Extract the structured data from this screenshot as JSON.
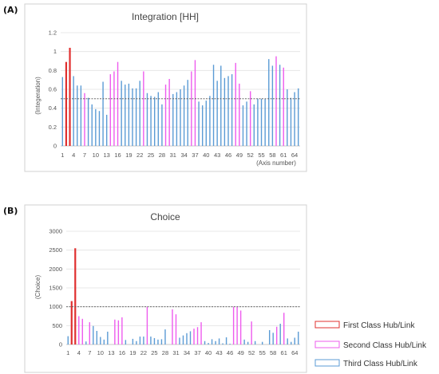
{
  "series_colors": {
    "First Class Hub/Link": "#e0302f",
    "Second Class Hub/Link": "#ee5cee",
    "Third Class Hub/Link": "#5b9bd5"
  },
  "legend": {
    "placement": "bottom-right",
    "items": [
      {
        "label": "First Class Hub/Link"
      },
      {
        "label": "Second Class Hub/Link"
      },
      {
        "label": "Third Class Hub/Link"
      }
    ]
  },
  "chart_data": [
    {
      "type": "bar",
      "panel_label": "(A)",
      "title": "Integration [HH]",
      "ylabel": "(Integeration)",
      "xlabel": "(Axis number)",
      "ylim": [
        0,
        1.2
      ],
      "yticks": [
        0,
        0.2,
        0.4,
        0.6,
        0.8,
        1,
        1.2
      ],
      "ytick_labels": [
        "0",
        "0.2",
        "0.4",
        "0.6",
        "0.8",
        "1",
        "1.2"
      ],
      "xtick_labels": [
        "1",
        "4",
        "7",
        "10",
        "13",
        "16",
        "19",
        "22",
        "25",
        "28",
        "31",
        "34",
        "37",
        "40",
        "43",
        "46",
        "49",
        "52",
        "55",
        "58",
        "61",
        "64"
      ],
      "reference_line": 0.5,
      "grid": true,
      "x": [
        1,
        2,
        3,
        4,
        5,
        6,
        7,
        8,
        9,
        10,
        11,
        12,
        13,
        14,
        15,
        16,
        17,
        18,
        19,
        20,
        21,
        22,
        23,
        24,
        25,
        26,
        27,
        28,
        29,
        30,
        31,
        32,
        33,
        34,
        35,
        36,
        37,
        38,
        39,
        40,
        41,
        42,
        43,
        44,
        45,
        46,
        47,
        48,
        49,
        50,
        51,
        52,
        53,
        54,
        55,
        56,
        57,
        58,
        59,
        60,
        61,
        62,
        63,
        64,
        65
      ],
      "values": [
        0.73,
        0.89,
        1.04,
        0.74,
        0.64,
        0.64,
        0.56,
        0.51,
        0.44,
        0.39,
        0.37,
        0.68,
        0.33,
        0.76,
        0.79,
        0.89,
        0.69,
        0.65,
        0.66,
        0.61,
        0.61,
        0.69,
        0.79,
        0.56,
        0.53,
        0.52,
        0.57,
        0.44,
        0.65,
        0.71,
        0.55,
        0.57,
        0.6,
        0.64,
        0.7,
        0.79,
        0.91,
        0.47,
        0.43,
        0.48,
        0.53,
        0.86,
        0.69,
        0.85,
        0.72,
        0.74,
        0.76,
        0.88,
        0.66,
        0.43,
        0.47,
        0.58,
        0.44,
        0.5,
        0.5,
        0.5,
        0.92,
        0.85,
        0.95,
        0.86,
        0.83,
        0.6,
        0.51,
        0.57,
        0.61
      ],
      "classes": [
        3,
        1,
        1,
        3,
        3,
        3,
        2,
        3,
        3,
        3,
        3,
        3,
        3,
        2,
        2,
        2,
        3,
        3,
        3,
        3,
        3,
        3,
        2,
        3,
        3,
        3,
        3,
        3,
        2,
        2,
        3,
        3,
        3,
        3,
        3,
        2,
        2,
        3,
        3,
        3,
        3,
        3,
        3,
        3,
        3,
        3,
        3,
        2,
        2,
        3,
        3,
        2,
        3,
        3,
        3,
        3,
        3,
        3,
        2,
        3,
        2,
        3,
        3,
        3,
        3
      ]
    },
    {
      "type": "bar",
      "panel_label": "(B)",
      "title": "Choice",
      "ylabel": "(Choice)",
      "xlabel": "",
      "ylim": [
        0,
        3000
      ],
      "yticks": [
        0,
        500,
        1000,
        1500,
        2000,
        2500,
        3000
      ],
      "ytick_labels": [
        "0",
        "500",
        "1000",
        "1500",
        "2000",
        "2500",
        "3000"
      ],
      "xtick_labels": [
        "1",
        "4",
        "7",
        "10",
        "13",
        "16",
        "19",
        "22",
        "25",
        "28",
        "31",
        "34",
        "37",
        "40",
        "43",
        "46",
        "49",
        "52",
        "55",
        "58",
        "61",
        "64"
      ],
      "reference_line": 1000,
      "grid": true,
      "x": [
        1,
        2,
        3,
        4,
        5,
        6,
        7,
        8,
        9,
        10,
        11,
        12,
        13,
        14,
        15,
        16,
        17,
        18,
        19,
        20,
        21,
        22,
        23,
        24,
        25,
        26,
        27,
        28,
        29,
        30,
        31,
        32,
        33,
        34,
        35,
        36,
        37,
        38,
        39,
        40,
        41,
        42,
        43,
        44,
        45,
        46,
        47,
        48,
        49,
        50,
        51,
        52,
        53,
        54,
        55,
        56,
        57,
        58,
        59,
        60,
        61,
        62,
        63,
        64,
        65
      ],
      "values": [
        220,
        1150,
        2550,
        750,
        680,
        80,
        590,
        490,
        360,
        200,
        130,
        340,
        0,
        660,
        640,
        720,
        120,
        0,
        150,
        90,
        210,
        210,
        1000,
        210,
        170,
        130,
        140,
        400,
        0,
        930,
        800,
        180,
        240,
        300,
        350,
        420,
        460,
        590,
        90,
        40,
        140,
        90,
        160,
        30,
        190,
        20,
        1000,
        1010,
        900,
        130,
        70,
        610,
        90,
        0,
        70,
        0,
        380,
        310,
        470,
        550,
        840,
        160,
        70,
        180,
        340
      ],
      "classes": [
        3,
        1,
        1,
        2,
        2,
        3,
        2,
        3,
        3,
        3,
        3,
        3,
        3,
        2,
        2,
        2,
        3,
        3,
        3,
        3,
        3,
        3,
        2,
        3,
        3,
        3,
        3,
        3,
        2,
        2,
        2,
        3,
        3,
        3,
        3,
        2,
        2,
        2,
        3,
        3,
        3,
        3,
        3,
        3,
        3,
        3,
        2,
        2,
        2,
        3,
        3,
        2,
        3,
        3,
        3,
        3,
        3,
        3,
        2,
        3,
        2,
        3,
        3,
        3,
        3
      ]
    }
  ]
}
